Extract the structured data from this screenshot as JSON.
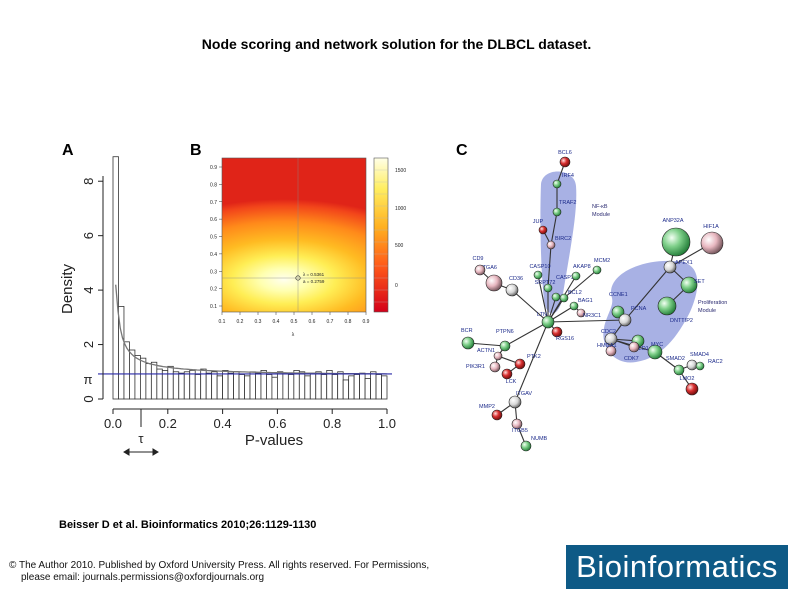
{
  "title": "Node scoring and network solution for the DLBCL dataset.",
  "citation": "Beisser D et al. Bioinformatics 2010;26:1129-1130",
  "copyright": {
    "line1": "© The Author 2010. Published by Oxford University Press. All rights reserved. For Permissions,",
    "line2": "please email: journals.permissions@oxfordjournals.org"
  },
  "brand": "Bioinformatics",
  "panels": {
    "a": "A",
    "b": "B",
    "c": "C"
  },
  "chart_data": [
    {
      "type": "bar",
      "panel": "A",
      "xlabel": "P-values",
      "ylabel": "Density",
      "xlim": [
        0,
        1
      ],
      "ylim": [
        0,
        9
      ],
      "xticks": [
        "0.0",
        "0.2",
        "0.4",
        "0.6",
        "0.8",
        "1.0"
      ],
      "yticks": [
        "0",
        "2",
        "4",
        "6",
        "8"
      ],
      "bin_width": 0.02,
      "values": [
        8.9,
        3.4,
        2.1,
        1.8,
        1.6,
        1.5,
        1.3,
        1.35,
        1.1,
        1.05,
        1.2,
        1.0,
        0.95,
        1.0,
        1.05,
        0.9,
        1.1,
        0.95,
        1.0,
        0.85,
        1.05,
        0.95,
        1.0,
        0.9,
        0.85,
        1.0,
        0.95,
        1.05,
        0.9,
        0.8,
        1.0,
        0.95,
        0.9,
        1.05,
        1.0,
        0.85,
        0.95,
        1.0,
        0.9,
        1.05,
        0.9,
        1.0,
        0.7,
        0.85,
        0.9,
        0.95,
        0.75,
        1.0,
        0.9,
        0.85
      ],
      "pi_level": 0.92,
      "pi_label": "π",
      "tau_label": "τ",
      "fitted_curve": true
    },
    {
      "type": "heatmap",
      "panel": "B",
      "xlabel": "λ",
      "xticks": [
        "0.1",
        "0.2",
        "0.3",
        "0.4",
        "0.5",
        "0.6",
        "0.7",
        "0.8",
        "0.9"
      ],
      "yticks": [
        "0.1",
        "0.2",
        "0.3",
        "0.4",
        "0.5",
        "0.6",
        "0.7",
        "0.8",
        "0.9"
      ],
      "colorbar_ticks": [
        "1500",
        "1000",
        "500",
        "0"
      ],
      "optimum": {
        "lambda": 0.5361,
        "a": 0.2759
      },
      "optimum_labels": [
        "λ = 0.5361",
        "a = 0.2759"
      ],
      "colors": {
        "low": "#d4001a",
        "mid": "#ffa500",
        "high": "#ffffe6"
      }
    }
  ],
  "network": {
    "modules": [
      "NF-κB Module",
      "Proliferation Module"
    ],
    "nodes": [
      {
        "label": "BCL6",
        "color": "red"
      },
      {
        "label": "IRF4",
        "color": "green"
      },
      {
        "label": "TRAF2",
        "color": "green"
      },
      {
        "label": "JUP",
        "color": "red"
      },
      {
        "label": "BIRC2",
        "color": "pink"
      },
      {
        "label": "ITGA6",
        "color": "pink"
      },
      {
        "label": "CD9",
        "color": "pink"
      },
      {
        "label": "CD36",
        "color": "white"
      },
      {
        "label": "CASP10",
        "color": "green"
      },
      {
        "label": "SRPT72",
        "color": "green"
      },
      {
        "label": "CASP3",
        "color": "green"
      },
      {
        "label": "AKAP8",
        "color": "green"
      },
      {
        "label": "MCM2",
        "color": "green"
      },
      {
        "label": "BCL2",
        "color": "green"
      },
      {
        "label": "BAG1",
        "color": "green"
      },
      {
        "label": "NR3C1",
        "color": "pink"
      },
      {
        "label": "LTN",
        "color": "green"
      },
      {
        "label": "RGS16",
        "color": "red"
      },
      {
        "label": "BCR",
        "color": "green"
      },
      {
        "label": "PTPN6",
        "color": "green"
      },
      {
        "label": "ACTN1",
        "color": "pink"
      },
      {
        "label": "PIK3R1",
        "color": "pink"
      },
      {
        "label": "PTK2",
        "color": "red"
      },
      {
        "label": "LCK",
        "color": "red"
      },
      {
        "label": "ITGAV",
        "color": "white"
      },
      {
        "label": "MMP2",
        "color": "red"
      },
      {
        "label": "ITGB5",
        "color": "pink"
      },
      {
        "label": "NUMB",
        "color": "green"
      },
      {
        "label": "CCNE1",
        "color": "green"
      },
      {
        "label": "PCNA",
        "color": "white"
      },
      {
        "label": "APEX1",
        "color": "white"
      },
      {
        "label": "ANP32A",
        "color": "green"
      },
      {
        "label": "HIF1A",
        "color": "pink"
      },
      {
        "label": "SET",
        "color": "green"
      },
      {
        "label": "DNTTIP2",
        "color": "green"
      },
      {
        "label": "CDC2",
        "color": "white"
      },
      {
        "label": "HMGA1",
        "color": "pink"
      },
      {
        "label": "CALD1",
        "color": "green"
      },
      {
        "label": "CDK7",
        "color": "pink"
      },
      {
        "label": "MYC",
        "color": "green"
      },
      {
        "label": "SMAD2",
        "color": "green"
      },
      {
        "label": "SMAD4",
        "color": "white"
      },
      {
        "label": "RAC2",
        "color": "green"
      },
      {
        "label": "LMO2",
        "color": "red"
      }
    ]
  }
}
